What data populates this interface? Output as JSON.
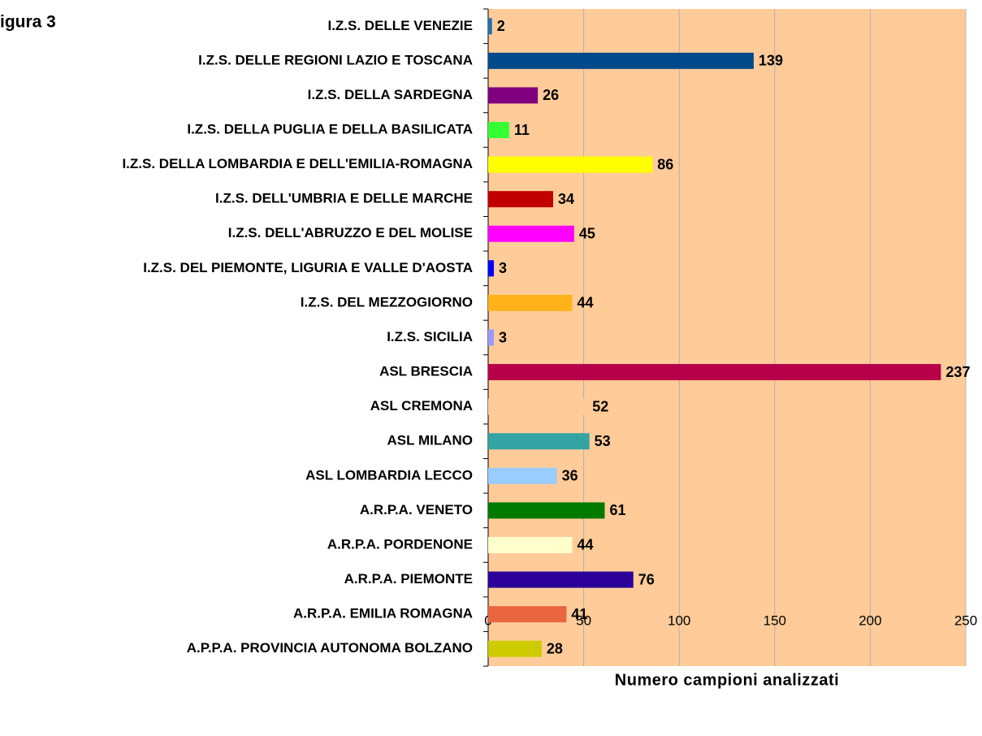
{
  "chart_data": {
    "type": "barh",
    "title": "igura 3",
    "x_label": "Numero campioni analizzati",
    "categories": [
      "I.Z.S. DELLE VENEZIE",
      "I.Z.S. DELLE REGIONI LAZIO E TOSCANA",
      "I.Z.S. DELLA SARDEGNA",
      "I.Z.S. DELLA PUGLIA E DELLA BASILICATA",
      "I.Z.S. DELLA LOMBARDIA E DELL'EMILIA-ROMAGNA",
      "I.Z.S. DELL'UMBRIA E DELLE MARCHE",
      "I.Z.S. DELL'ABRUZZO E DEL MOLISE",
      "I.Z.S. DEL PIEMONTE, LIGURIA E VALLE D'AOSTA",
      "I.Z.S. DEL MEZZOGIORNO",
      "I.Z.S. SICILIA",
      "ASL BRESCIA",
      "ASL CREMONA",
      "ASL MILANO",
      "ASL LOMBARDIA LECCO",
      "A.R.P.A. VENETO",
      "A.R.P.A. PORDENONE",
      "A.R.P.A. PIEMONTE",
      "A.R.P.A. EMILIA ROMAGNA",
      "A.P.P.A. PROVINCIA AUTONOMA BOLZANO"
    ],
    "values": [
      2,
      139,
      26,
      11,
      86,
      34,
      45,
      3,
      44,
      3,
      237,
      52,
      53,
      36,
      61,
      44,
      76,
      41,
      28
    ],
    "colors": [
      "#1f6fb0",
      "#004a8c",
      "#800080",
      "#33ff33",
      "#ffff00",
      "#c00000",
      "#ff00ff",
      "#0000ff",
      "#ffb319",
      "#9999ff",
      "#b8004a",
      "#ffcc99",
      "#33a3a3",
      "#99ccff",
      "#007a00",
      "#ffffcc",
      "#2a0099",
      "#ea6640",
      "#cccc00"
    ],
    "background": "#ffcc99",
    "xlim": [
      0,
      250
    ],
    "xticks": [
      0,
      50,
      100,
      150,
      200,
      250
    ],
    "grid": true
  }
}
